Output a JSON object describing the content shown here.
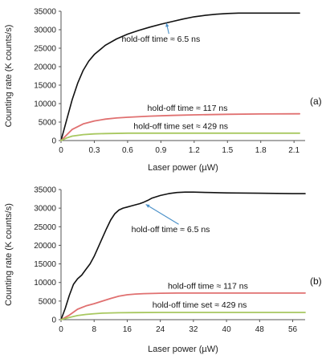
{
  "chart_data": [
    {
      "type": "line",
      "panel_label": "(a)",
      "xlabel": "Laser power (µW)",
      "ylabel": "Counting rate (K counts/s)",
      "xlim": [
        0,
        2.2
      ],
      "ylim": [
        0,
        35000
      ],
      "x_ticks": [
        "0",
        "0.3",
        "0.6",
        "0.9",
        "1.2",
        "1.5",
        "1.8",
        "2.1"
      ],
      "x_tick_values": [
        0,
        0.3,
        0.6,
        0.9,
        1.2,
        1.5,
        1.8,
        2.1
      ],
      "y_ticks": [
        "0",
        "5000",
        "10000",
        "15000",
        "20000",
        "25000",
        "30000",
        "35000"
      ],
      "y_tick_values": [
        0,
        5000,
        10000,
        15000,
        20000,
        25000,
        30000,
        35000
      ],
      "grid": false,
      "series": [
        {
          "color": "#111111",
          "x": [
            0,
            0.05,
            0.1,
            0.15,
            0.2,
            0.25,
            0.3,
            0.4,
            0.5,
            0.6,
            0.7,
            0.8,
            0.9,
            1.0,
            1.1,
            1.2,
            1.3,
            1.4,
            1.5,
            1.6,
            1.8,
            2.0,
            2.15
          ],
          "y": [
            0,
            5500,
            11000,
            15500,
            19000,
            21500,
            23300,
            25800,
            27500,
            28800,
            29800,
            30700,
            31500,
            32200,
            32900,
            33500,
            33900,
            34200,
            34400,
            34500,
            34500,
            34500,
            34500
          ]
        },
        {
          "color": "#e07070",
          "x": [
            0,
            0.05,
            0.1,
            0.2,
            0.3,
            0.4,
            0.5,
            0.6,
            0.8,
            1.0,
            1.2,
            1.5,
            1.8,
            2.15
          ],
          "y": [
            0,
            1500,
            3000,
            4500,
            5300,
            5800,
            6100,
            6300,
            6600,
            6800,
            6950,
            7100,
            7200,
            7250
          ]
        },
        {
          "color": "#a8c860",
          "x": [
            0,
            0.05,
            0.1,
            0.2,
            0.3,
            0.4,
            0.6,
            0.8,
            1.0,
            1.5,
            2.15
          ],
          "y": [
            0,
            700,
            1200,
            1600,
            1800,
            1900,
            2000,
            2000,
            2000,
            2000,
            2000
          ]
        }
      ],
      "annotations": [
        {
          "text": "hold-off time ≈ 6.5 ns",
          "x": 0.9,
          "y": 26700,
          "arrow_to": [
            0.95,
            31800
          ]
        },
        {
          "text": "hold-off time ≈ 117 ns",
          "x": 1.14,
          "y": 8000
        },
        {
          "text": "hold-off time set ≈ 429 ns",
          "x": 1.08,
          "y": 3100
        }
      ]
    },
    {
      "type": "line",
      "panel_label": "(b)",
      "xlabel": "Laser power (µW)",
      "ylabel": "Counting rate (K counts/s)",
      "xlim": [
        0,
        59
      ],
      "ylim": [
        0,
        35000
      ],
      "x_ticks": [
        "0",
        "8",
        "16",
        "24",
        "32",
        "40",
        "48",
        "56"
      ],
      "x_tick_values": [
        0,
        8,
        16,
        24,
        32,
        40,
        48,
        56
      ],
      "y_ticks": [
        "0",
        "5000",
        "10000",
        "15000",
        "20000",
        "25000",
        "30000",
        "35000"
      ],
      "y_tick_values": [
        0,
        5000,
        10000,
        15000,
        20000,
        25000,
        30000,
        35000
      ],
      "grid": false,
      "series": [
        {
          "color": "#111111",
          "x": [
            0,
            1,
            2,
            3,
            4,
            5,
            6,
            7,
            8,
            9,
            10,
            11,
            12,
            13,
            14,
            15,
            16,
            17,
            18,
            19,
            20,
            21,
            22,
            24,
            26,
            28,
            30,
            32,
            36,
            40,
            48,
            56,
            59
          ],
          "y": [
            0,
            3000,
            6500,
            9500,
            11000,
            12000,
            13500,
            15000,
            17000,
            19500,
            22000,
            24500,
            26800,
            28500,
            29500,
            30000,
            30300,
            30600,
            30900,
            31200,
            31600,
            32100,
            32700,
            33400,
            33900,
            34200,
            34300,
            34300,
            34200,
            34100,
            34000,
            33900,
            33900
          ]
        },
        {
          "color": "#e07070",
          "x": [
            0,
            2,
            4,
            6,
            8,
            10,
            12,
            14,
            16,
            18,
            20,
            24,
            28,
            32,
            40,
            48,
            56,
            59
          ],
          "y": [
            0,
            1200,
            2800,
            3700,
            4300,
            5000,
            5700,
            6300,
            6700,
            6900,
            7000,
            7100,
            7150,
            7150,
            7150,
            7150,
            7150,
            7150
          ]
        },
        {
          "color": "#a8c860",
          "x": [
            0,
            2,
            4,
            6,
            8,
            10,
            14,
            18,
            24,
            32,
            40,
            56,
            59
          ],
          "y": [
            0,
            600,
            1100,
            1400,
            1600,
            1750,
            1850,
            1900,
            1950,
            1950,
            1950,
            1950,
            1950
          ]
        }
      ],
      "annotations": [
        {
          "text": "hold-off time ≈ 6.5 ns",
          "x": 26.5,
          "y": 23500,
          "arrow_to": [
            20.5,
            31000
          ]
        },
        {
          "text": "hold-off time ≈ 117 ns",
          "x": 35.5,
          "y": 8300
        },
        {
          "text": "hold-off time set ≈ 429 ns",
          "x": 33.5,
          "y": 3200
        }
      ]
    }
  ]
}
